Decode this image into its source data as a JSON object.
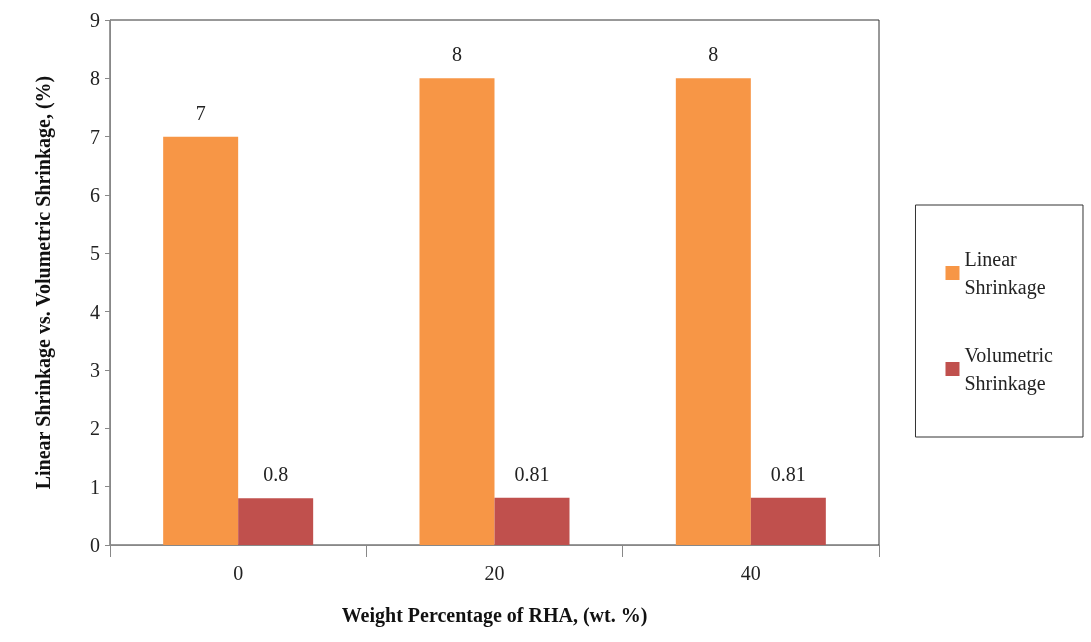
{
  "chart_data": {
    "type": "bar",
    "xlabel": "Weight Percentage of RHA, (wt. %)",
    "ylabel": "Linear Shrinkage vs. Volumetric Shrinkage, (%)",
    "categories": [
      "0",
      "20",
      "40"
    ],
    "series": [
      {
        "name": "Linear Shrinkage",
        "color": "#f79646",
        "values": [
          7,
          8,
          8
        ]
      },
      {
        "name": "Volumetric Shrinkage",
        "color": "#c0504d",
        "values": [
          0.8,
          0.81,
          0.81
        ]
      }
    ],
    "ylim": [
      0,
      9
    ],
    "yticks": [
      0,
      1,
      2,
      3,
      4,
      5,
      6,
      7,
      8,
      9
    ],
    "grid": false,
    "legend": "right",
    "data_labels": true
  }
}
